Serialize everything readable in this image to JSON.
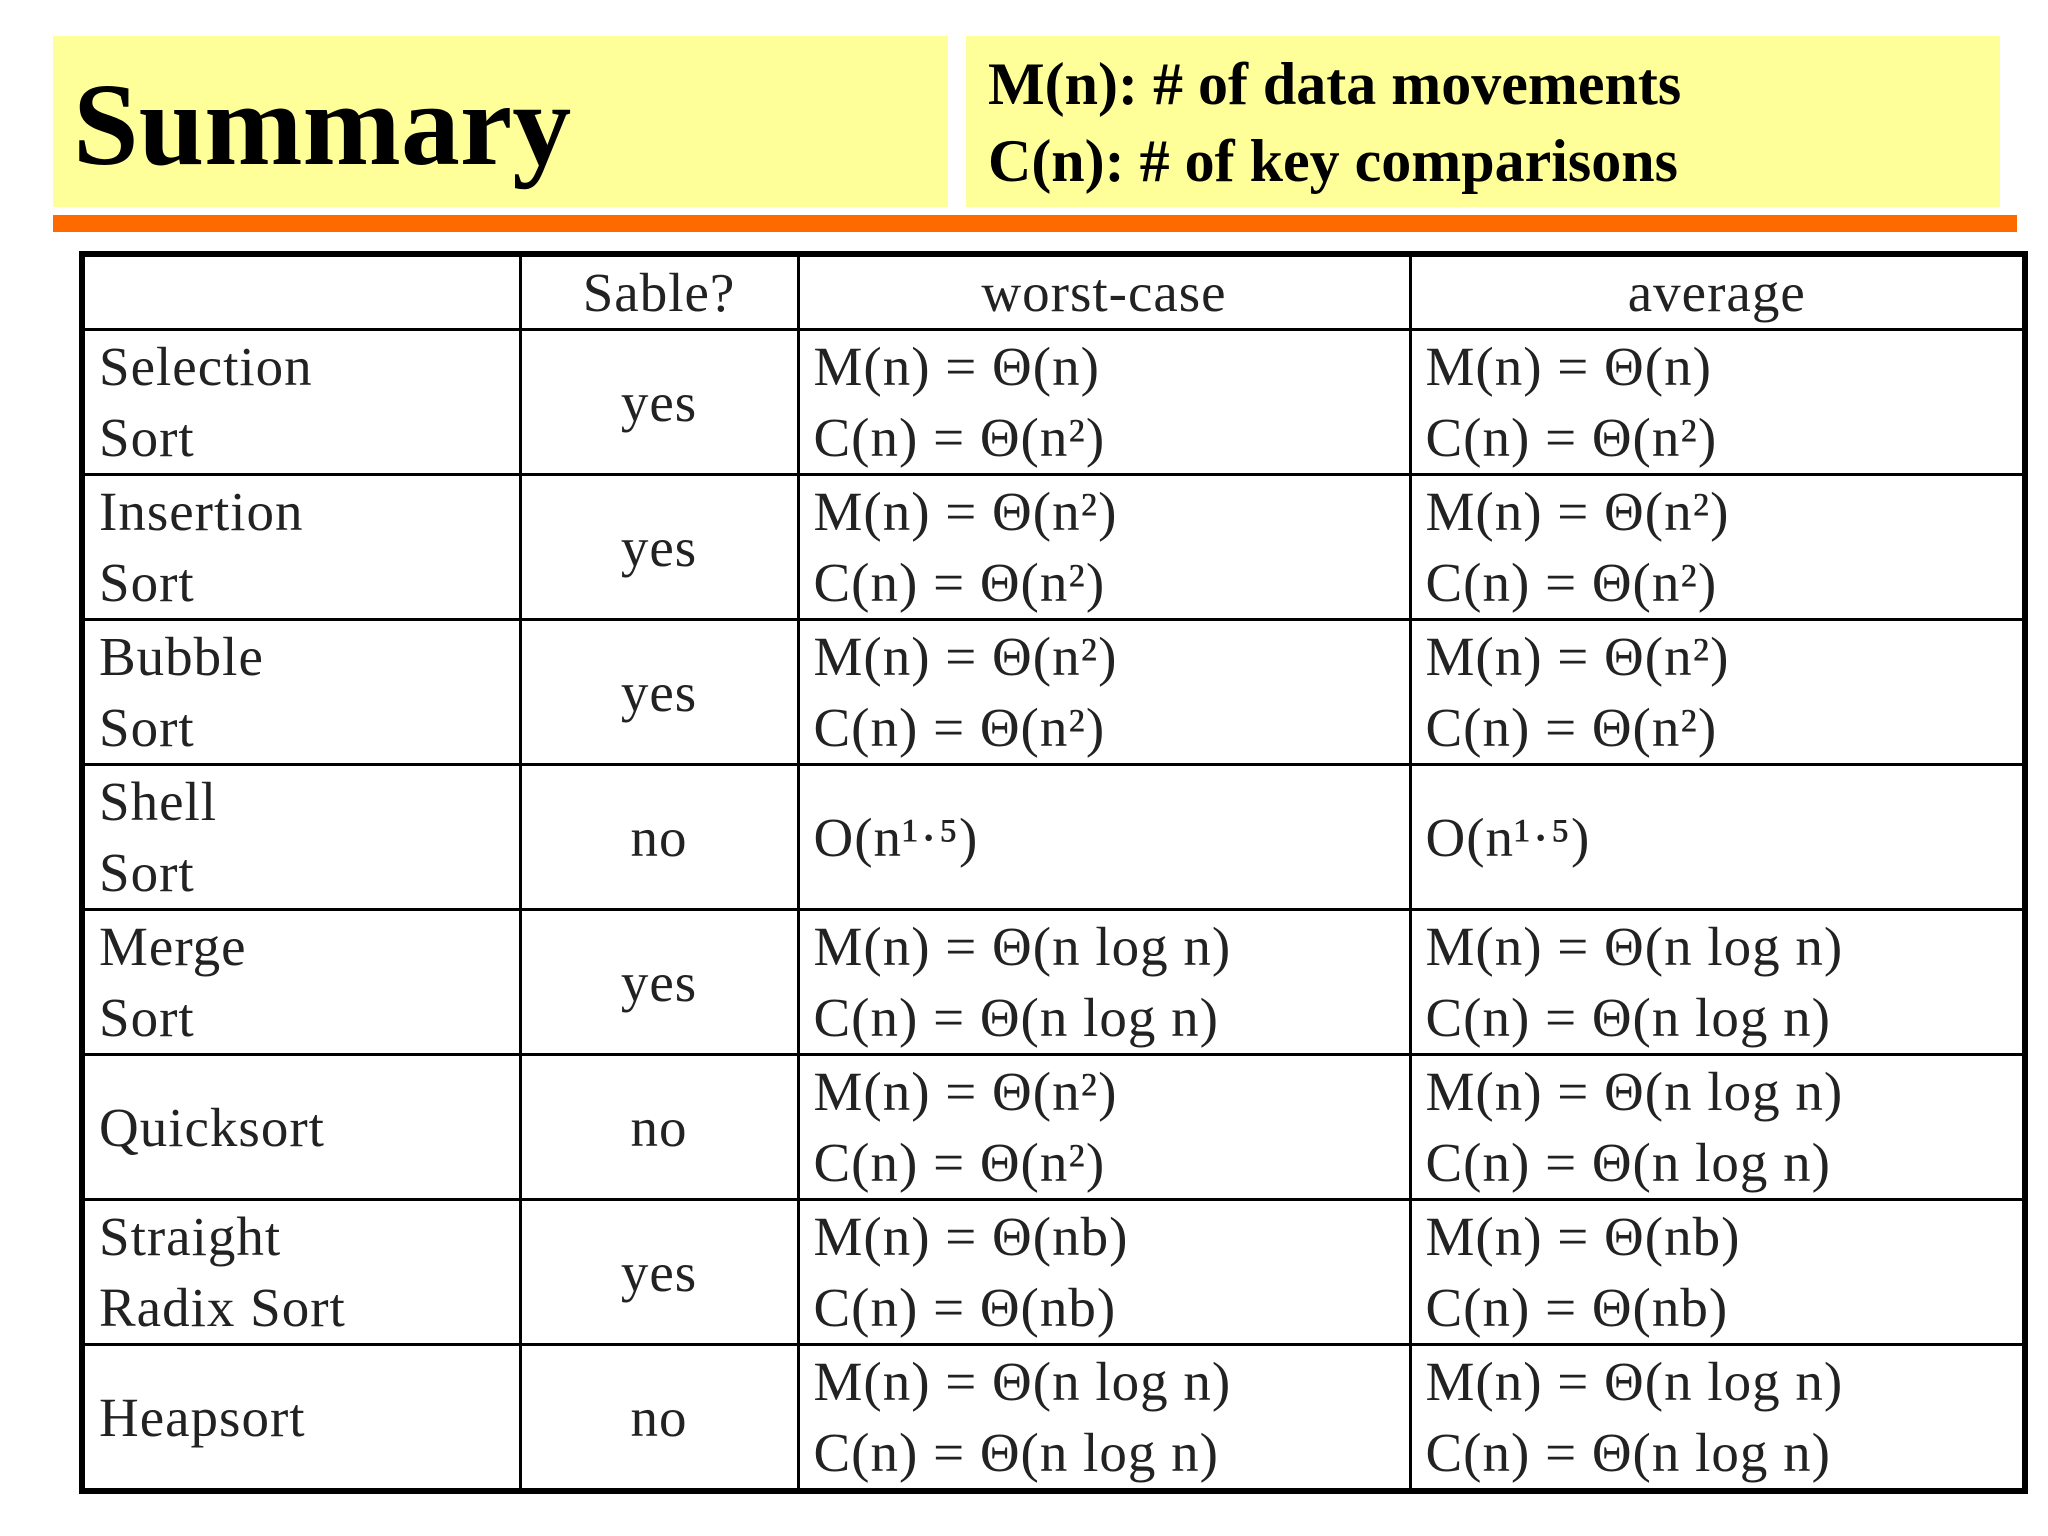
{
  "header": {
    "title": "Summary",
    "legend": [
      "M(n): # of data movements",
      "C(n): # of key comparisons"
    ]
  },
  "table": {
    "columns": [
      "Sable?",
      "worst-case",
      "average"
    ],
    "rows": [
      {
        "name": [
          "Selection",
          "Sort"
        ],
        "stable": "yes",
        "worst": [
          "M(n) = Θ(n)",
          "C(n) = Θ(n²)"
        ],
        "average": [
          "M(n) = Θ(n)",
          "C(n) = Θ(n²)"
        ]
      },
      {
        "name": [
          "Insertion",
          "Sort"
        ],
        "stable": "yes",
        "worst": [
          "M(n) = Θ(n²)",
          "C(n) = Θ(n²)"
        ],
        "average": [
          "M(n) = Θ(n²)",
          "C(n) = Θ(n²)"
        ]
      },
      {
        "name": [
          "Bubble",
          "Sort"
        ],
        "stable": "yes",
        "worst": [
          "M(n) = Θ(n²)",
          "C(n) = Θ(n²)"
        ],
        "average": [
          "M(n) = Θ(n²)",
          "C(n) = Θ(n²)"
        ]
      },
      {
        "name": [
          "Shell",
          "Sort"
        ],
        "stable": "no",
        "worst": [
          "O(n¹·⁵)"
        ],
        "average": [
          "O(n¹·⁵)"
        ]
      },
      {
        "name": [
          "Merge",
          "Sort"
        ],
        "stable": "yes",
        "worst": [
          "M(n) = Θ(n log n)",
          "C(n) = Θ(n log n)"
        ],
        "average": [
          "M(n) = Θ(n log n)",
          "C(n) = Θ(n log n)"
        ]
      },
      {
        "name": [
          "Quicksort"
        ],
        "stable": "no",
        "worst": [
          "M(n) = Θ(n²)",
          "C(n) = Θ(n²)"
        ],
        "average": [
          "M(n) = Θ(n log n)",
          "C(n) = Θ(n log n)"
        ]
      },
      {
        "name": [
          "Straight",
          "Radix Sort"
        ],
        "stable": "yes",
        "worst": [
          "M(n) = Θ(nb)",
          "C(n) = Θ(nb)"
        ],
        "average": [
          "M(n) = Θ(nb)",
          "C(n) = Θ(nb)"
        ]
      },
      {
        "name": [
          "Heapsort"
        ],
        "stable": "no",
        "worst": [
          "M(n) = Θ(n log n)",
          "C(n) = Θ(n log n)"
        ],
        "average": [
          "M(n) = Θ(n log n)",
          "C(n) = Θ(n log n)"
        ]
      }
    ]
  }
}
